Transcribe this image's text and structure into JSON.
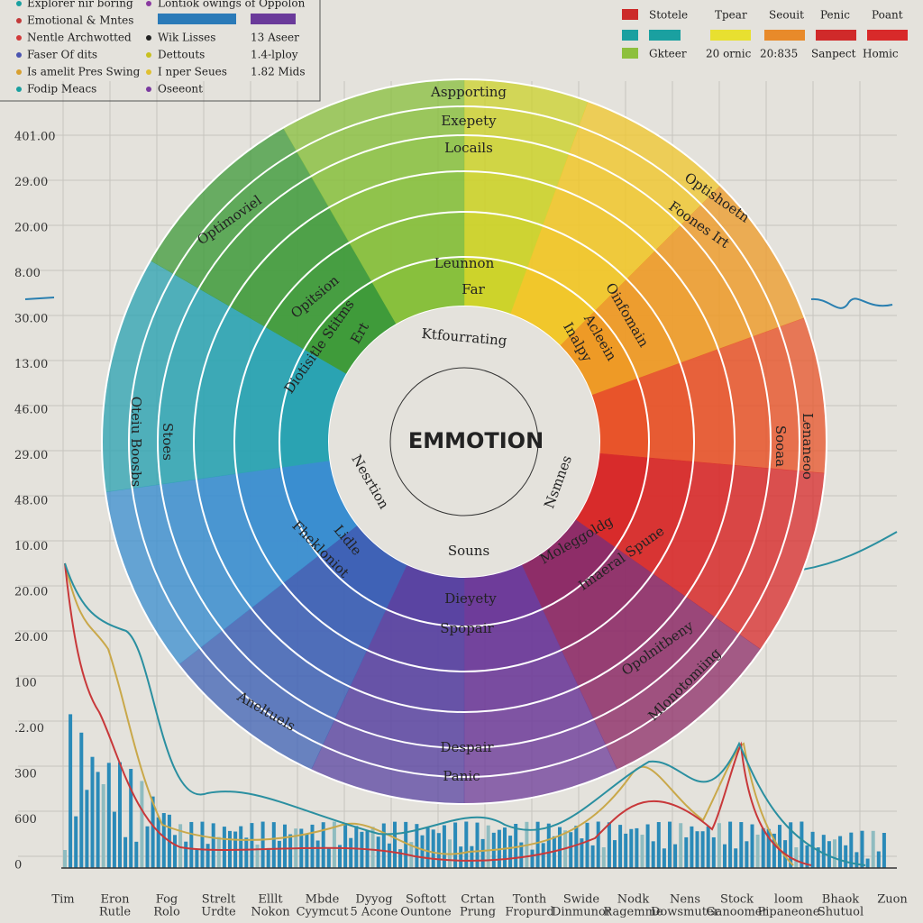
{
  "legend_left": {
    "col1": [
      "Explorer nir boring",
      "Emotional & Mntes",
      "Nentle Archwotted",
      "Faser Of dits",
      "Is amelit Pres Swing",
      "Fodip Meacs"
    ],
    "col2": [
      "Lontiok owings of Oppolon",
      "Wik Lisses",
      "Dettouts",
      "I nper Seues",
      "Oseeont"
    ],
    "col3": [
      "13 Aseer",
      "1.4-lploy",
      "1.82 Mids"
    ]
  },
  "legend_right": {
    "row1": [
      "Stotele",
      "Tpear",
      "Seouit",
      "Penic",
      "Poant"
    ],
    "row2": [
      "Gkteer",
      "20 ornic",
      "20:835",
      "Sanpect",
      "Homic"
    ]
  },
  "y_axis_labels": [
    "401.00",
    "29.00",
    "20.00",
    "8.00",
    "30.00",
    "13.00",
    "46.00",
    "29.00",
    "48.00",
    "10.00",
    "20.00",
    "20.00",
    "100",
    ".2.00",
    "300",
    "600",
    "0"
  ],
  "x_axis_labels": [
    [
      "Tim"
    ],
    [
      "Eron",
      "Rutle"
    ],
    [
      "Fog",
      "Rolo"
    ],
    [
      "Strelt",
      "Urdte"
    ],
    [
      "Elllt",
      "Nokon"
    ],
    [
      "Mbde",
      "Cyymcut"
    ],
    [
      "Dyyog",
      "5 Acone"
    ],
    [
      "Softott",
      "Ountone"
    ],
    [
      "Crtan",
      "Prung"
    ],
    [
      "Tonth",
      "Fropurd"
    ],
    [
      "Swide",
      "Dinmunor"
    ],
    [
      "Nodk",
      "Ragemme"
    ],
    [
      "Nens",
      "Dowsmuter"
    ],
    [
      "Stock",
      "Ganoomer"
    ],
    [
      "loom",
      "Pipaneone"
    ],
    [
      "Bhaok",
      "Shutuol"
    ],
    [
      "Zuon"
    ]
  ],
  "wheel": {
    "center": "EMMOTION",
    "labels": [
      "Aspporting",
      "Exepety",
      "Locails",
      "Leunnon",
      "Far",
      "Ktfourrating",
      "Optimoviel",
      "Opitsion",
      "Diotisitle Stitms",
      "Ert",
      "Optishoetn",
      "Foones Irt",
      "Oinfomain",
      "Acleein",
      "Inalpy",
      "Sooaa",
      "Lenaneoo",
      "Nsmnes",
      "Nesrtion",
      "Souns",
      "Dieyety",
      "Spopair",
      "Despair",
      "Panic",
      "Fhekloniot",
      "Lidle",
      "Moleggoldg",
      "Imaeral Spune",
      "Opolnitbeny",
      "Mlonotomiing",
      "Aneltuels",
      "Oteiu Boosbs",
      "Stoes"
    ]
  }
}
